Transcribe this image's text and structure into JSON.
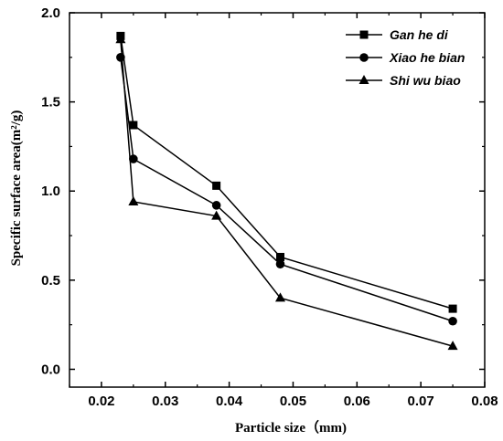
{
  "chart_data": {
    "type": "line",
    "xlabel": "Particle size（mm)",
    "ylabel": "Specific surface area(m²/g)",
    "xlim": [
      0.015,
      0.08
    ],
    "ylim": [
      -0.1,
      2.0
    ],
    "x_ticks": [
      "0.02",
      "0.03",
      "0.04",
      "0.05",
      "0.06",
      "0.07",
      "0.08"
    ],
    "y_ticks": [
      "0.0",
      "0.5",
      "1.0",
      "1.5",
      "2.0"
    ],
    "x_tick_values": [
      0.02,
      0.03,
      0.04,
      0.05,
      0.06,
      0.07,
      0.08
    ],
    "y_tick_values": [
      0.0,
      0.5,
      1.0,
      1.5,
      2.0
    ],
    "legend_position": "top-right",
    "grid": false,
    "series": [
      {
        "name": "Gan he di",
        "marker": "square",
        "x": [
          0.023,
          0.025,
          0.038,
          0.048,
          0.075
        ],
        "y": [
          1.87,
          1.37,
          1.03,
          0.63,
          0.34
        ]
      },
      {
        "name": "Xiao he bian",
        "marker": "circle",
        "x": [
          0.023,
          0.025,
          0.038,
          0.048,
          0.075
        ],
        "y": [
          1.75,
          1.18,
          0.92,
          0.59,
          0.27
        ]
      },
      {
        "name": "Shi wu biao",
        "marker": "triangle",
        "x": [
          0.023,
          0.025,
          0.038,
          0.048,
          0.075
        ],
        "y": [
          1.85,
          0.94,
          0.86,
          0.4,
          0.13
        ]
      }
    ]
  }
}
